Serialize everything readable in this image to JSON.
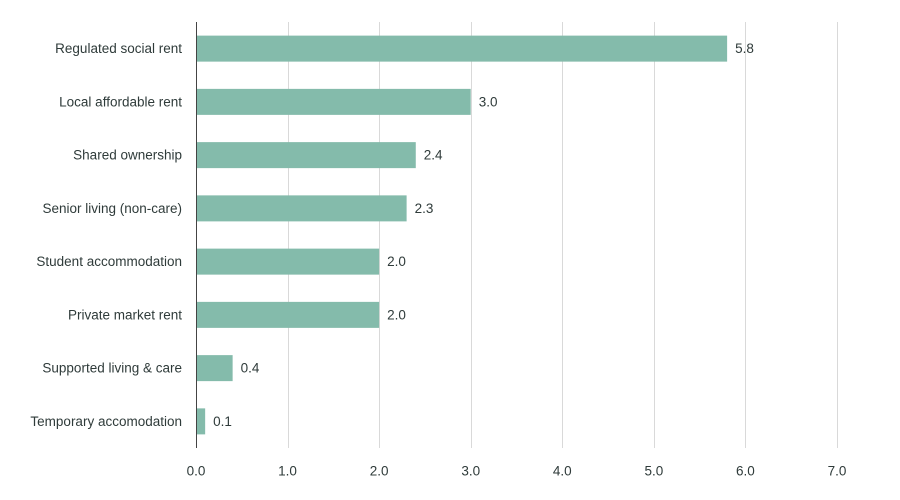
{
  "chart_data": {
    "type": "bar",
    "orientation": "horizontal",
    "title": "",
    "xlabel": "",
    "ylabel": "",
    "categories": [
      "Regulated social rent",
      "Local affordable rent",
      "Shared ownership",
      "Senior living (non-care)",
      "Student accommodation",
      "Private market rent",
      "Supported living & care",
      "Temporary accomodation"
    ],
    "values": [
      5.8,
      3.0,
      2.4,
      2.3,
      2.0,
      2.0,
      0.4,
      0.1
    ],
    "value_labels": [
      "5.8",
      "3.0",
      "2.4",
      "2.3",
      "2.0",
      "2.0",
      "0.4",
      "0.1"
    ],
    "xlim": [
      0,
      7
    ],
    "xticks": [
      0,
      1,
      2,
      3,
      4,
      5,
      6,
      7
    ],
    "xtick_labels": [
      "0.0",
      "1.0",
      "2.0",
      "3.0",
      "4.0",
      "5.0",
      "6.0",
      "7.0"
    ],
    "grid": true,
    "legend": "none",
    "bar_color": "#84bbab"
  }
}
